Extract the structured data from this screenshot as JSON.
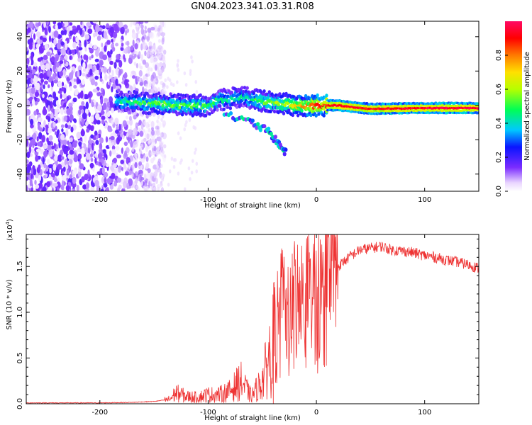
{
  "title": "GN04.2023.341.03.31.R08",
  "chart_data": [
    {
      "type": "heatmap",
      "xlabel": "Height of straight line (km)",
      "ylabel": "Frequency (Hz)",
      "xlim": [
        -268,
        150
      ],
      "ylim": [
        -50,
        49
      ],
      "x_ticks": [
        -200,
        -100,
        0,
        100
      ],
      "x_tick_labels": [
        "-200",
        "-100",
        "0",
        "100"
      ],
      "y_ticks": [
        -40,
        -20,
        0,
        20,
        40
      ],
      "y_tick_labels": [
        "-40",
        "-20",
        "0",
        "20",
        "40"
      ],
      "colorbar": {
        "label": "Normalized spectral amplitude",
        "range": [
          0,
          1
        ],
        "ticks": [
          0.0,
          0.2,
          0.4,
          0.6,
          0.8
        ],
        "tick_labels": [
          "0.0",
          "0.2",
          "0.4",
          "0.6",
          "0.8"
        ]
      },
      "features": {
        "noise_region_x": [
          -268,
          -150
        ],
        "main_ridge": [
          {
            "x": -185,
            "freq": 3,
            "amp": 0.4
          },
          {
            "x": -160,
            "freq": 1.5,
            "amp": 0.5
          },
          {
            "x": -140,
            "freq": 1,
            "amp": 0.55
          },
          {
            "x": -120,
            "freq": 0,
            "amp": 0.5
          },
          {
            "x": -100,
            "freq": 0,
            "amp": 0.5
          },
          {
            "x": -90,
            "freq": 3,
            "amp": 0.45
          },
          {
            "x": -70,
            "freq": 5,
            "amp": 0.4
          },
          {
            "x": -55,
            "freq": 3,
            "amp": 0.5
          },
          {
            "x": -40,
            "freq": 2,
            "amp": 0.55
          },
          {
            "x": -20,
            "freq": 0,
            "amp": 0.7
          },
          {
            "x": 0,
            "freq": 0,
            "amp": 0.85
          },
          {
            "x": 20,
            "freq": 0,
            "amp": 0.95
          },
          {
            "x": 50,
            "freq": -2,
            "amp": 0.9
          },
          {
            "x": 100,
            "freq": -1.5,
            "amp": 0.95
          },
          {
            "x": 150,
            "freq": -1.5,
            "amp": 0.95
          }
        ],
        "descending_branch": [
          {
            "x": -85,
            "freq": -5
          },
          {
            "x": -60,
            "freq": -10
          },
          {
            "x": -45,
            "freq": -15
          },
          {
            "x": -35,
            "freq": -22
          },
          {
            "x": -28,
            "freq": -28
          }
        ]
      }
    },
    {
      "type": "line",
      "xlabel": "Height of straight line (km)",
      "ylabel": "SNR (10 * v/v)",
      "y_multiplier_label": "(x10",
      "y_multiplier_exponent": "4",
      "y_multiplier_close": ")",
      "xlim": [
        -268,
        150
      ],
      "ylim": [
        0,
        1.85
      ],
      "x_ticks": [
        -200,
        -100,
        0,
        100
      ],
      "x_tick_labels": [
        "-200",
        "-100",
        "0",
        "100"
      ],
      "y_ticks": [
        0.0,
        0.5,
        1.0,
        1.5
      ],
      "y_tick_labels": [
        "0.0",
        "0.5",
        "1.0",
        "1.5"
      ],
      "color": "#ee3333",
      "series": [
        {
          "x": [
            -268,
            -240,
            -200,
            -170,
            -150,
            -135,
            -130,
            -120,
            -110,
            -100,
            -90,
            -80,
            -70,
            -60,
            -50,
            -45,
            -40,
            -35,
            -30,
            -25,
            -20,
            -15,
            -10,
            -5,
            0,
            5,
            10,
            20,
            30,
            40,
            50,
            60,
            70,
            80,
            90,
            100,
            110,
            120,
            130,
            140,
            150
          ],
          "y": [
            0.01,
            0.01,
            0.01,
            0.015,
            0.025,
            0.05,
            0.12,
            0.08,
            0.07,
            0.1,
            0.1,
            0.14,
            0.25,
            0.08,
            0.25,
            0.45,
            0.65,
            0.8,
            1.0,
            0.9,
            1.1,
            1.05,
            1.0,
            1.1,
            1.05,
            1.15,
            1.25,
            1.5,
            1.6,
            1.68,
            1.7,
            1.72,
            1.68,
            1.67,
            1.65,
            1.62,
            1.6,
            1.57,
            1.55,
            1.52,
            1.48
          ]
        }
      ]
    }
  ]
}
